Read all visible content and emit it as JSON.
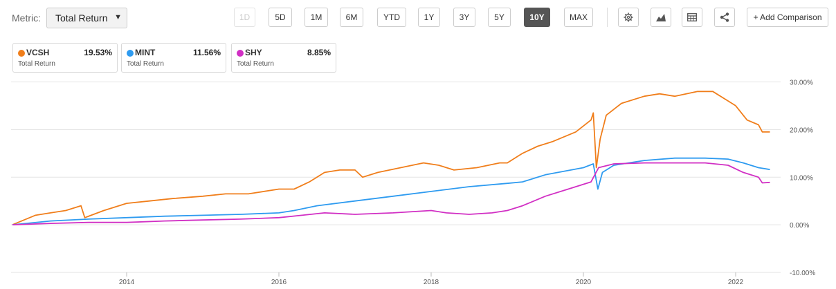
{
  "toolbar": {
    "metric_label": "Metric:",
    "metric_value": "Total Return",
    "ranges": [
      {
        "label": "1D",
        "state": "disabled"
      },
      {
        "label": "5D",
        "state": "normal"
      },
      {
        "label": "1M",
        "state": "normal"
      },
      {
        "label": "6M",
        "state": "normal"
      },
      {
        "label": "YTD",
        "state": "normal"
      },
      {
        "label": "1Y",
        "state": "normal"
      },
      {
        "label": "3Y",
        "state": "normal"
      },
      {
        "label": "5Y",
        "state": "normal"
      },
      {
        "label": "10Y",
        "state": "active"
      },
      {
        "label": "MAX",
        "state": "normal"
      }
    ],
    "icons": [
      "gear-icon",
      "chart-type-icon",
      "table-icon",
      "share-icon"
    ],
    "add_comparison": "+ Add Comparison"
  },
  "legend": [
    {
      "ticker": "VCSH",
      "value": "19.53%",
      "label": "Total Return",
      "color": "#f07e1b"
    },
    {
      "ticker": "MINT",
      "value": "11.56%",
      "label": "Total Return",
      "color": "#2e9bf0"
    },
    {
      "ticker": "SHY",
      "value": "8.85%",
      "label": "Total Return",
      "color": "#d12fc4"
    }
  ],
  "chart_data": {
    "type": "line",
    "xlim": [
      2012.5,
      2022.5
    ],
    "ylim": [
      -10,
      30
    ],
    "y_ticks": [
      30,
      20,
      10,
      0,
      -10
    ],
    "y_tick_labels": [
      "30.00%",
      "20.00%",
      "10.00%",
      "0.00%",
      "-10.00%"
    ],
    "x_ticks": [
      2014,
      2016,
      2018,
      2020,
      2022
    ],
    "x_tick_labels": [
      "2014",
      "2016",
      "2018",
      "2020",
      "2022"
    ],
    "grid": true,
    "series": [
      {
        "name": "VCSH",
        "color": "#f07e1b",
        "points": [
          [
            2012.5,
            0
          ],
          [
            2012.8,
            2
          ],
          [
            2013.0,
            2.5
          ],
          [
            2013.2,
            3
          ],
          [
            2013.4,
            4
          ],
          [
            2013.45,
            1.5
          ],
          [
            2013.7,
            3
          ],
          [
            2014.0,
            4.5
          ],
          [
            2014.3,
            5
          ],
          [
            2014.6,
            5.5
          ],
          [
            2015.0,
            6
          ],
          [
            2015.3,
            6.5
          ],
          [
            2015.6,
            6.5
          ],
          [
            2016.0,
            7.5
          ],
          [
            2016.2,
            7.5
          ],
          [
            2016.4,
            9
          ],
          [
            2016.6,
            11
          ],
          [
            2016.8,
            11.5
          ],
          [
            2017.0,
            11.5
          ],
          [
            2017.1,
            10
          ],
          [
            2017.3,
            11
          ],
          [
            2017.6,
            12
          ],
          [
            2017.9,
            13
          ],
          [
            2018.1,
            12.5
          ],
          [
            2018.3,
            11.5
          ],
          [
            2018.6,
            12
          ],
          [
            2018.9,
            13
          ],
          [
            2019.0,
            13
          ],
          [
            2019.2,
            15
          ],
          [
            2019.4,
            16.5
          ],
          [
            2019.6,
            17.5
          ],
          [
            2019.9,
            19.5
          ],
          [
            2020.1,
            22
          ],
          [
            2020.13,
            23.5
          ],
          [
            2020.17,
            12
          ],
          [
            2020.22,
            18
          ],
          [
            2020.3,
            23
          ],
          [
            2020.5,
            25.5
          ],
          [
            2020.8,
            27
          ],
          [
            2021.0,
            27.5
          ],
          [
            2021.2,
            27
          ],
          [
            2021.5,
            28
          ],
          [
            2021.7,
            28
          ],
          [
            2021.9,
            26
          ],
          [
            2022.0,
            25
          ],
          [
            2022.15,
            22
          ],
          [
            2022.3,
            21
          ],
          [
            2022.35,
            19.5
          ],
          [
            2022.45,
            19.5
          ]
        ]
      },
      {
        "name": "MINT",
        "color": "#2e9bf0",
        "points": [
          [
            2012.5,
            0
          ],
          [
            2013.0,
            0.8
          ],
          [
            2013.5,
            1.2
          ],
          [
            2014.0,
            1.5
          ],
          [
            2014.5,
            1.8
          ],
          [
            2015.0,
            2
          ],
          [
            2015.5,
            2.2
          ],
          [
            2016.0,
            2.5
          ],
          [
            2016.2,
            3
          ],
          [
            2016.5,
            4
          ],
          [
            2017.0,
            5
          ],
          [
            2017.5,
            6
          ],
          [
            2018.0,
            7
          ],
          [
            2018.5,
            8
          ],
          [
            2019.0,
            8.7
          ],
          [
            2019.2,
            9
          ],
          [
            2019.5,
            10.5
          ],
          [
            2020.0,
            12
          ],
          [
            2020.13,
            12.8
          ],
          [
            2020.19,
            7.5
          ],
          [
            2020.25,
            11
          ],
          [
            2020.4,
            12.5
          ],
          [
            2020.8,
            13.5
          ],
          [
            2021.2,
            14
          ],
          [
            2021.6,
            14
          ],
          [
            2021.9,
            13.8
          ],
          [
            2022.1,
            13
          ],
          [
            2022.3,
            12
          ],
          [
            2022.45,
            11.6
          ]
        ]
      },
      {
        "name": "SHY",
        "color": "#d12fc4",
        "points": [
          [
            2012.5,
            0
          ],
          [
            2013.0,
            0.3
          ],
          [
            2013.5,
            0.5
          ],
          [
            2014.0,
            0.5
          ],
          [
            2014.5,
            0.8
          ],
          [
            2015.0,
            1
          ],
          [
            2015.5,
            1.2
          ],
          [
            2016.0,
            1.5
          ],
          [
            2016.3,
            2
          ],
          [
            2016.6,
            2.5
          ],
          [
            2017.0,
            2.2
          ],
          [
            2017.5,
            2.5
          ],
          [
            2018.0,
            3
          ],
          [
            2018.2,
            2.5
          ],
          [
            2018.5,
            2.2
          ],
          [
            2018.8,
            2.5
          ],
          [
            2019.0,
            3
          ],
          [
            2019.2,
            4
          ],
          [
            2019.5,
            6
          ],
          [
            2019.8,
            7.5
          ],
          [
            2020.1,
            9
          ],
          [
            2020.2,
            12
          ],
          [
            2020.4,
            12.8
          ],
          [
            2020.8,
            13
          ],
          [
            2021.2,
            13
          ],
          [
            2021.6,
            13
          ],
          [
            2021.9,
            12.5
          ],
          [
            2022.1,
            11
          ],
          [
            2022.3,
            10
          ],
          [
            2022.35,
            8.8
          ],
          [
            2022.45,
            8.9
          ]
        ]
      }
    ]
  }
}
